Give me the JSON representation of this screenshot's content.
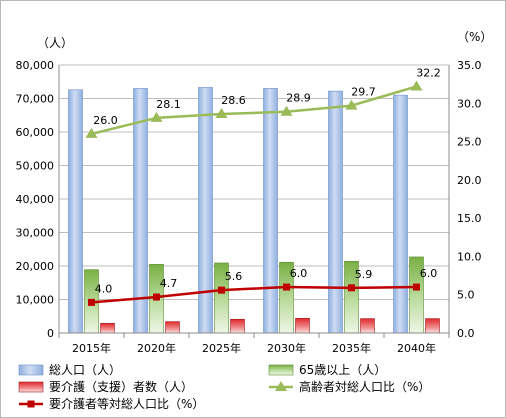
{
  "chart_data": {
    "type": "bar",
    "categories": [
      "2015年",
      "2020年",
      "2025年",
      "2030年",
      "2035年",
      "2040年"
    ],
    "left_unit": "（人）",
    "right_unit": "（%）",
    "left_ylim": [
      0,
      80000
    ],
    "right_ylim": [
      0,
      35.0
    ],
    "left_ticks": [
      "0",
      "10,000",
      "20,000",
      "30,000",
      "40,000",
      "50,000",
      "60,000",
      "70,000",
      "80,000"
    ],
    "right_ticks": [
      "0.0",
      "5.0",
      "10.0",
      "15.0",
      "20.0",
      "25.0",
      "30.0",
      "35.0"
    ],
    "grid": true,
    "legend_position": "bottom",
    "bar_series": [
      {
        "name": "総人口（人）",
        "values": [
          72600,
          73000,
          73300,
          73000,
          72200,
          71000
        ],
        "color": "#a9c3ea"
      },
      {
        "name": "65歳以上（人）",
        "values": [
          18900,
          20500,
          20900,
          21100,
          21400,
          22700
        ],
        "color": "#8ec15a"
      },
      {
        "name": "要介護（支援）者数（人）",
        "values": [
          2900,
          3400,
          4100,
          4400,
          4300,
          4300
        ],
        "color": "#e0282d"
      }
    ],
    "line_series": [
      {
        "name": "高齢者対総人口比（%）",
        "values": [
          26.0,
          28.1,
          28.6,
          28.9,
          29.7,
          32.2
        ],
        "labels": [
          "26.0",
          "28.1",
          "28.6",
          "28.9",
          "29.7",
          "32.2"
        ],
        "color": "#9bbb59",
        "marker": "triangle"
      },
      {
        "name": "要介護者等対総人口比（%）",
        "values": [
          4.0,
          4.7,
          5.6,
          6.0,
          5.9,
          6.0
        ],
        "labels": [
          "4.0",
          "4.7",
          "5.6",
          "6.0",
          "5.9",
          "6.0"
        ],
        "color": "#c00000",
        "marker": "square"
      }
    ]
  }
}
